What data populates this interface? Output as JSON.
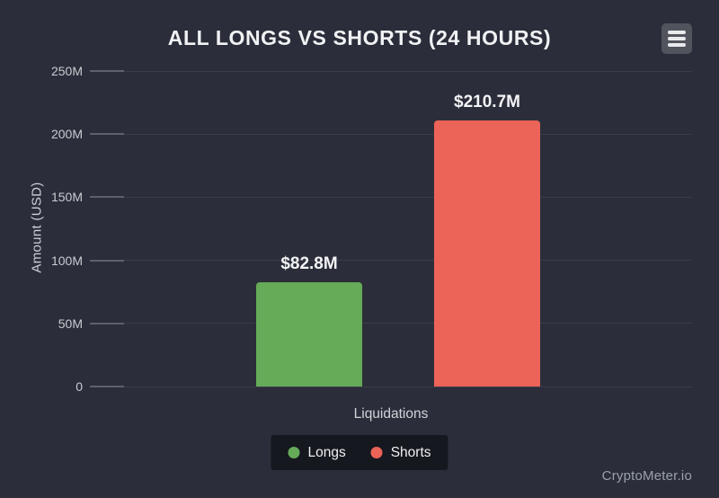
{
  "header": {
    "title": "ALL LONGS VS SHORTS (24 HOURS)"
  },
  "chart_data": {
    "type": "bar",
    "title": "ALL LONGS VS SHORTS (24 HOURS)",
    "categories": [
      "Liquidations"
    ],
    "series": [
      {
        "name": "Longs",
        "values": [
          82800000
        ],
        "data_label": "$82.8M",
        "color": "#65ab58"
      },
      {
        "name": "Shorts",
        "values": [
          210700000
        ],
        "data_label": "$210.7M",
        "color": "#ec6357"
      }
    ],
    "xlabel": "Liquidations",
    "ylabel": "Amount (USD)",
    "ylim": [
      0,
      250000000
    ],
    "yticks": [
      {
        "value": 0,
        "label": "0"
      },
      {
        "value": 50000000,
        "label": "50M"
      },
      {
        "value": 100000000,
        "label": "100M"
      },
      {
        "value": 150000000,
        "label": "150M"
      },
      {
        "value": 200000000,
        "label": "200M"
      },
      {
        "value": 250000000,
        "label": "250M"
      }
    ],
    "grid": true,
    "legend_position": "bottom"
  },
  "legend": {
    "items": [
      {
        "label": "Longs",
        "color": "#65ab58"
      },
      {
        "label": "Shorts",
        "color": "#ec6357"
      }
    ]
  },
  "footer": {
    "watermark": "CryptoMeter.io"
  },
  "colors": {
    "background": "#2b2e3a",
    "grid": "#3a3d48",
    "tick": "#5d616c",
    "title_text": "#f1f2f4",
    "axis_text": "#c9cbd1",
    "legend_background": "#16181f",
    "menu_button_background": "#51545c",
    "longs": "#65ab58",
    "shorts": "#ec6357"
  }
}
